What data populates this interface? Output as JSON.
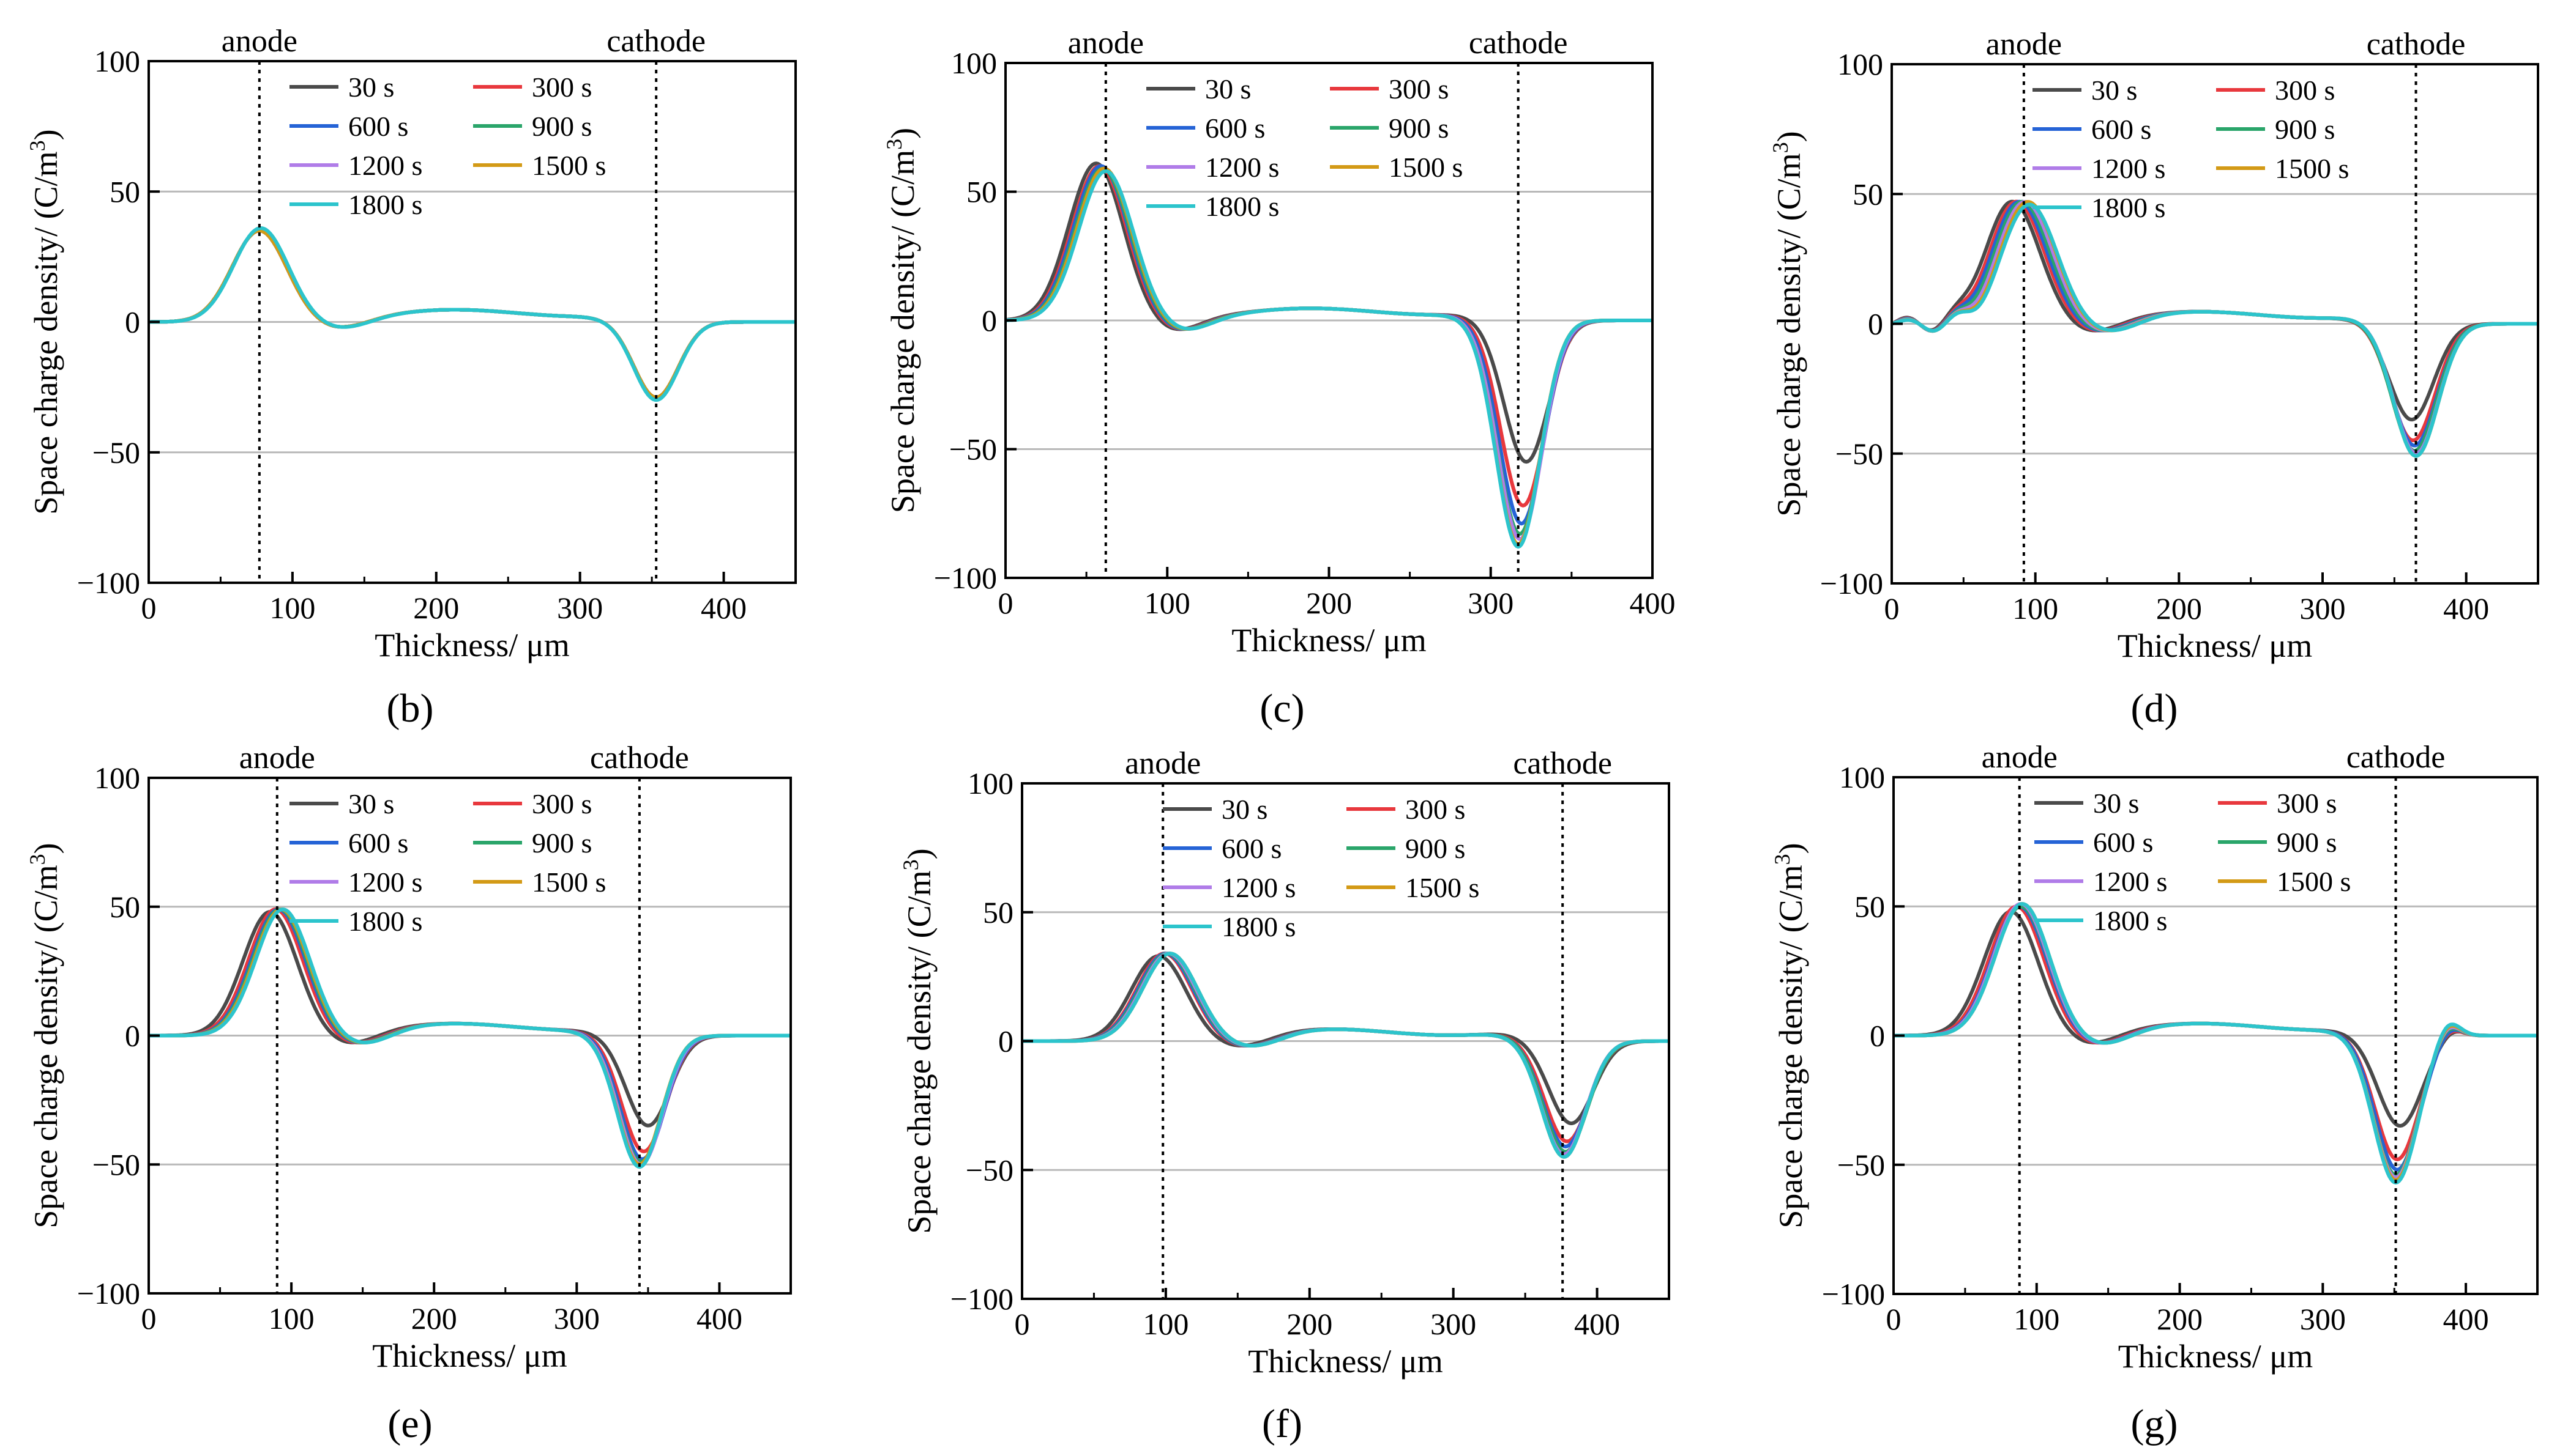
{
  "figure": {
    "series_colors": {
      "30 s": "#4a4a4a",
      "300 s": "#e8383d",
      "600 s": "#2563d6",
      "900 s": "#2aa56a",
      "1200 s": "#b07ce8",
      "1500 s": "#d39a16",
      "1800 s": "#2cc4cc"
    },
    "legend_order": [
      "30 s",
      "300 s",
      "600 s",
      "900 s",
      "1200 s",
      "1500 s",
      "1800 s"
    ]
  },
  "chart_data": [
    {
      "panel": "(b)",
      "type": "line",
      "xlabel": "Thickness/ μm",
      "ylabel": "Space charge density/ (C/m³)",
      "xlim": [
        0,
        450
      ],
      "ylim": [
        -100,
        100
      ],
      "xticks": [
        0,
        100,
        200,
        300,
        400
      ],
      "yticks": [
        -100,
        -50,
        0,
        50,
        100
      ],
      "anode_x": 77,
      "cathode_x": 353,
      "electrode_labels": [
        "anode",
        "cathode"
      ],
      "series": [
        {
          "name": "30 s",
          "anode_peak": [
            77,
            35
          ],
          "cathode_peak": [
            353,
            -29
          ]
        },
        {
          "name": "300 s",
          "anode_peak": [
            77,
            35
          ],
          "cathode_peak": [
            353,
            -29
          ]
        },
        {
          "name": "600 s",
          "anode_peak": [
            77,
            35
          ],
          "cathode_peak": [
            353,
            -29
          ]
        },
        {
          "name": "900 s",
          "anode_peak": [
            77,
            35
          ],
          "cathode_peak": [
            353,
            -29
          ]
        },
        {
          "name": "1200 s",
          "anode_peak": [
            77,
            35
          ],
          "cathode_peak": [
            353,
            -29
          ]
        },
        {
          "name": "1500 s",
          "anode_peak": [
            77,
            35
          ],
          "cathode_peak": [
            353,
            -29
          ]
        },
        {
          "name": "1800 s",
          "anode_peak": [
            78,
            36
          ],
          "cathode_peak": [
            353,
            -30
          ]
        }
      ]
    },
    {
      "panel": "(c)",
      "type": "line",
      "xlabel": "Thickness/ μm",
      "ylabel": "Space charge density/ (C/m³)",
      "xlim": [
        0,
        400
      ],
      "ylim": [
        -100,
        100
      ],
      "xticks": [
        0,
        100,
        200,
        300,
        400
      ],
      "yticks": [
        -100,
        -50,
        0,
        50,
        100
      ],
      "anode_x": 62,
      "cathode_x": 317,
      "electrode_labels": [
        "anode",
        "cathode"
      ],
      "series": [
        {
          "name": "30 s",
          "anode_peak": [
            56,
            61
          ],
          "cathode_peak": [
            322,
            -55
          ]
        },
        {
          "name": "300 s",
          "anode_peak": [
            58,
            60
          ],
          "cathode_peak": [
            320,
            -72
          ]
        },
        {
          "name": "600 s",
          "anode_peak": [
            59,
            60
          ],
          "cathode_peak": [
            319,
            -79
          ]
        },
        {
          "name": "900 s",
          "anode_peak": [
            60,
            59
          ],
          "cathode_peak": [
            318,
            -83
          ]
        },
        {
          "name": "1200 s",
          "anode_peak": [
            61,
            59
          ],
          "cathode_peak": [
            318,
            -85
          ]
        },
        {
          "name": "1500 s",
          "anode_peak": [
            61,
            59
          ],
          "cathode_peak": [
            317,
            -87
          ]
        },
        {
          "name": "1800 s",
          "anode_peak": [
            62,
            58
          ],
          "cathode_peak": [
            317,
            -88
          ]
        }
      ]
    },
    {
      "panel": "(d)",
      "type": "line",
      "xlabel": "Thickness/ μm",
      "ylabel": "Space charge density/ (C/m³)",
      "xlim": [
        0,
        450
      ],
      "ylim": [
        -100,
        100
      ],
      "xticks": [
        0,
        100,
        200,
        300,
        400
      ],
      "yticks": [
        -100,
        -50,
        0,
        50,
        100
      ],
      "anode_x": 92,
      "cathode_x": 365,
      "electrode_labels": [
        "anode",
        "cathode"
      ],
      "series": [
        {
          "name": "30 s",
          "anode_peak": [
            84,
            47
          ],
          "cathode_peak": [
            362,
            -37
          ]
        },
        {
          "name": "300 s",
          "anode_peak": [
            87,
            47
          ],
          "cathode_peak": [
            363,
            -45
          ]
        },
        {
          "name": "600 s",
          "anode_peak": [
            89,
            47
          ],
          "cathode_peak": [
            364,
            -47
          ]
        },
        {
          "name": "900 s",
          "anode_peak": [
            91,
            47
          ],
          "cathode_peak": [
            364,
            -49
          ]
        },
        {
          "name": "1200 s",
          "anode_peak": [
            93,
            47
          ],
          "cathode_peak": [
            365,
            -50
          ]
        },
        {
          "name": "1500 s",
          "anode_peak": [
            95,
            47
          ],
          "cathode_peak": [
            365,
            -51
          ]
        },
        {
          "name": "1800 s",
          "anode_peak": [
            96,
            46
          ],
          "cathode_peak": [
            365,
            -51
          ]
        }
      ]
    },
    {
      "panel": "(e)",
      "type": "line",
      "xlabel": "Thickness/ μm",
      "ylabel": "Space charge density/ (C/m³)",
      "xlim": [
        0,
        450
      ],
      "ylim": [
        -100,
        100
      ],
      "xticks": [
        0,
        100,
        200,
        300,
        400
      ],
      "yticks": [
        -100,
        -50,
        0,
        50,
        100
      ],
      "anode_x": 90,
      "cathode_x": 344,
      "electrode_labels": [
        "anode",
        "cathode"
      ],
      "series": [
        {
          "name": "30 s",
          "anode_peak": [
            85,
            48
          ],
          "cathode_peak": [
            350,
            -35
          ]
        },
        {
          "name": "300 s",
          "anode_peak": [
            89,
            49
          ],
          "cathode_peak": [
            347,
            -45
          ]
        },
        {
          "name": "600 s",
          "anode_peak": [
            91,
            49
          ],
          "cathode_peak": [
            346,
            -48
          ]
        },
        {
          "name": "900 s",
          "anode_peak": [
            92,
            49
          ],
          "cathode_peak": [
            345,
            -49
          ]
        },
        {
          "name": "1200 s",
          "anode_peak": [
            93,
            49
          ],
          "cathode_peak": [
            345,
            -50
          ]
        },
        {
          "name": "1500 s",
          "anode_peak": [
            93,
            49
          ],
          "cathode_peak": [
            344,
            -50
          ]
        },
        {
          "name": "1800 s",
          "anode_peak": [
            94,
            49
          ],
          "cathode_peak": [
            344,
            -51
          ]
        }
      ]
    },
    {
      "panel": "(f)",
      "type": "line",
      "xlabel": "Thickness/ μm",
      "ylabel": "Space charge density/ (C/m³)",
      "xlim": [
        0,
        450
      ],
      "ylim": [
        -100,
        100
      ],
      "xticks": [
        0,
        100,
        200,
        300,
        400
      ],
      "yticks": [
        -100,
        -50,
        0,
        50,
        100
      ],
      "anode_x": 98,
      "cathode_x": 376,
      "electrode_labels": [
        "anode",
        "cathode"
      ],
      "series": [
        {
          "name": "30 s",
          "anode_peak": [
            95,
            33
          ],
          "cathode_peak": [
            382,
            -32
          ]
        },
        {
          "name": "300 s",
          "anode_peak": [
            99,
            34
          ],
          "cathode_peak": [
            379,
            -39
          ]
        },
        {
          "name": "600 s",
          "anode_peak": [
            100,
            34
          ],
          "cathode_peak": [
            378,
            -41
          ]
        },
        {
          "name": "900 s",
          "anode_peak": [
            101,
            34
          ],
          "cathode_peak": [
            378,
            -43
          ]
        },
        {
          "name": "1200 s",
          "anode_peak": [
            102,
            34
          ],
          "cathode_peak": [
            377,
            -44
          ]
        },
        {
          "name": "1500 s",
          "anode_peak": [
            103,
            34
          ],
          "cathode_peak": [
            377,
            -45
          ]
        },
        {
          "name": "1800 s",
          "anode_peak": [
            103,
            34
          ],
          "cathode_peak": [
            377,
            -45
          ]
        }
      ]
    },
    {
      "panel": "(g)",
      "type": "line",
      "xlabel": "Thickness/ μm",
      "ylabel": "Space charge density/ (C/m³)",
      "xlim": [
        0,
        450
      ],
      "ylim": [
        -100,
        100
      ],
      "xticks": [
        0,
        100,
        200,
        300,
        400
      ],
      "yticks": [
        -100,
        -50,
        0,
        50,
        100
      ],
      "anode_x": 88,
      "cathode_x": 351,
      "electrode_labels": [
        "anode",
        "cathode"
      ],
      "series": [
        {
          "name": "30 s",
          "anode_peak": [
            82,
            48
          ],
          "cathode_peak": [
            354,
            -35
          ]
        },
        {
          "name": "300 s",
          "anode_peak": [
            86,
            50
          ],
          "cathode_peak": [
            352,
            -48
          ]
        },
        {
          "name": "600 s",
          "anode_peak": [
            88,
            50
          ],
          "cathode_peak": [
            352,
            -52
          ]
        },
        {
          "name": "900 s",
          "anode_peak": [
            89,
            50
          ],
          "cathode_peak": [
            351,
            -54
          ]
        },
        {
          "name": "1200 s",
          "anode_peak": [
            89,
            51
          ],
          "cathode_peak": [
            351,
            -55
          ]
        },
        {
          "name": "1500 s",
          "anode_peak": [
            90,
            51
          ],
          "cathode_peak": [
            351,
            -56
          ]
        },
        {
          "name": "1800 s",
          "anode_peak": [
            90,
            51
          ],
          "cathode_peak": [
            351,
            -57
          ]
        }
      ]
    }
  ]
}
